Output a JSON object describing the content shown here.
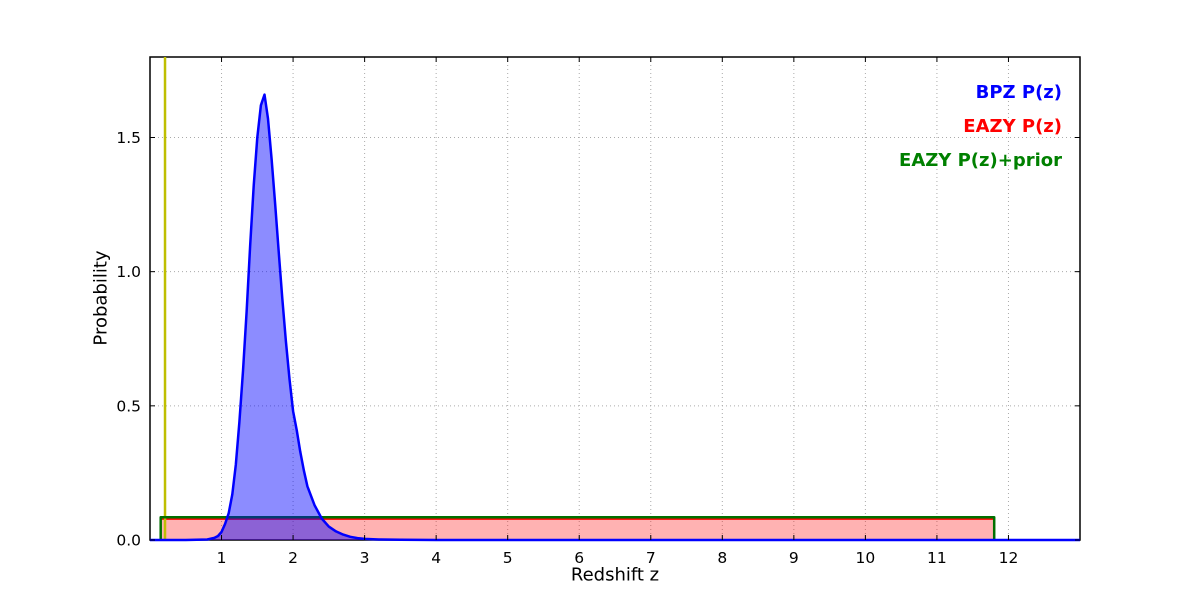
{
  "figure": {
    "background": "#ffffff",
    "frame_color": "#000000",
    "grid_color": "#aaaaaa"
  },
  "chart_data": {
    "type": "area",
    "title": "",
    "xlabel": "Redshift z",
    "ylabel": "Probability",
    "xlim": [
      0,
      13
    ],
    "ylim": [
      0,
      1.8
    ],
    "xticks": [
      1,
      2,
      3,
      4,
      5,
      6,
      7,
      8,
      9,
      10,
      11,
      12
    ],
    "yticks": [
      0.0,
      0.5,
      1.0,
      1.5
    ],
    "grid": true,
    "legend": {
      "position": "upper right",
      "items": [
        {
          "label": "BPZ P(z)",
          "color": "#0000ff"
        },
        {
          "label": "EAZY P(z)",
          "color": "#ff0000"
        },
        {
          "label": "EAZY P(z)+prior",
          "color": "#008000"
        }
      ]
    },
    "series": [
      {
        "id": "eazy",
        "name": "EAZY P(z)",
        "kind": "area",
        "color": "#ff0000",
        "fill": true,
        "fill_opacity": 0.3,
        "line_width": 1.5,
        "x": [
          0.15,
          0.15,
          11.8,
          11.8
        ],
        "y": [
          0,
          0.078,
          0.078,
          0
        ]
      },
      {
        "id": "marker-z",
        "name": "redshift marker",
        "kind": "vline",
        "color": "#bfbf00",
        "line_width": 2.5,
        "x": 0.21
      },
      {
        "id": "eazy-prior",
        "name": "EAZY P(z)+prior",
        "kind": "line",
        "color": "#007000",
        "fill": false,
        "line_width": 2.5,
        "x": [
          0.15,
          0.15,
          11.8,
          11.8
        ],
        "y": [
          0,
          0.085,
          0.085,
          0
        ]
      },
      {
        "id": "bpz",
        "name": "BPZ P(z)",
        "kind": "area",
        "color": "#0000ff",
        "fill": true,
        "fill_opacity": 0.45,
        "line_width": 2.5,
        "x": [
          0.0,
          0.5,
          0.8,
          0.9,
          0.95,
          1.0,
          1.05,
          1.1,
          1.15,
          1.2,
          1.25,
          1.3,
          1.35,
          1.4,
          1.45,
          1.5,
          1.55,
          1.6,
          1.65,
          1.7,
          1.75,
          1.8,
          1.85,
          1.9,
          1.95,
          2.0,
          2.05,
          2.1,
          2.15,
          2.2,
          2.3,
          2.4,
          2.5,
          2.6,
          2.7,
          2.8,
          2.9,
          3.0,
          3.2,
          3.5,
          4.0,
          13.0
        ],
        "y": [
          0,
          0,
          0.002,
          0.008,
          0.015,
          0.03,
          0.06,
          0.1,
          0.17,
          0.28,
          0.44,
          0.63,
          0.85,
          1.1,
          1.32,
          1.5,
          1.62,
          1.66,
          1.57,
          1.42,
          1.25,
          1.07,
          0.9,
          0.74,
          0.6,
          0.48,
          0.41,
          0.33,
          0.26,
          0.2,
          0.13,
          0.08,
          0.05,
          0.032,
          0.02,
          0.012,
          0.007,
          0.004,
          0.002,
          0.001,
          0.0,
          0.0
        ]
      }
    ]
  }
}
